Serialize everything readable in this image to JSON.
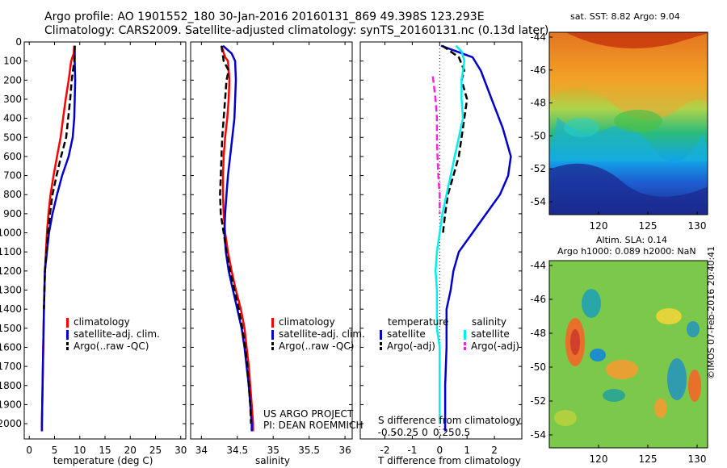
{
  "titles": {
    "line1": "Argo profile: AO 1901552_180 30-Jan-2016 20160131_869 49.398S 123.293E",
    "line2": "Climatology: CARS2009. Satellite-adjusted climatology: synTS_20160131.nc (0.13d later)"
  },
  "legends": {
    "temp": [
      "climatology",
      "satellite-adj. clim.",
      "Argo(..raw -QC)"
    ],
    "sal": [
      "climatology",
      "satellite-adj. clim.",
      "Argo(..raw -QC)"
    ],
    "diff_temp_header": "temperature",
    "diff_sal_header": "salinity",
    "diff_temp": [
      "satellite",
      "Argo(-adj)"
    ],
    "diff_sal": [
      "satellite",
      "Argo(-adj)"
    ]
  },
  "notes": {
    "project": "US ARGO PROJECT",
    "pi": "PI: DEAN ROEMMICH",
    "credit": "©IMOS 07-Feb-2016 20:40:41"
  },
  "maps": {
    "sst_title": "sat. SST: 8.82 Argo: 9.04",
    "sla_title1": "Altim. SLA: 0.14",
    "sla_title2": "Argo h1000: 0.089 h2000: NaN",
    "yticks": [
      "-44",
      "-46",
      "-48",
      "-50",
      "-52",
      "-54"
    ],
    "xticks": [
      "120",
      "125",
      "130"
    ]
  },
  "colors": {
    "climatology": "#ff0000",
    "satellite": "#0000cc",
    "argo": "#000000",
    "sat_sal": "#00eeee",
    "argo_sal": "#ff22dd"
  },
  "chart_data": [
    {
      "type": "line",
      "xlabel": "temperature (deg C)",
      "ylabel": "",
      "xlim": [
        -1,
        31
      ],
      "ylim": [
        2080,
        0
      ],
      "xticks": [
        0,
        5,
        10,
        15,
        20,
        25,
        30
      ],
      "yticks": [
        0,
        100,
        200,
        300,
        400,
        500,
        600,
        700,
        800,
        900,
        1000,
        1100,
        1200,
        1300,
        1400,
        1500,
        1600,
        1700,
        1800,
        1900,
        2000
      ],
      "series": [
        {
          "name": "climatology",
          "color": "#ff0000",
          "dash": false,
          "points": [
            [
              8.9,
              20
            ],
            [
              8.8,
              60
            ],
            [
              8.3,
              100
            ],
            [
              7.8,
              200
            ],
            [
              7.2,
              300
            ],
            [
              6.7,
              400
            ],
            [
              6.2,
              500
            ],
            [
              5.5,
              600
            ],
            [
              4.8,
              700
            ],
            [
              4.2,
              800
            ],
            [
              3.8,
              900
            ],
            [
              3.5,
              1000
            ],
            [
              3.3,
              1100
            ],
            [
              3.1,
              1200
            ],
            [
              2.9,
              1400
            ],
            [
              2.7,
              1700
            ],
            [
              2.5,
              2000
            ],
            [
              2.5,
              2040
            ]
          ]
        },
        {
          "name": "satellite-adj. clim.",
          "color": "#0000cc",
          "dash": false,
          "points": [
            [
              9.0,
              20
            ],
            [
              9.0,
              100
            ],
            [
              9.1,
              200
            ],
            [
              9.0,
              300
            ],
            [
              8.9,
              400
            ],
            [
              8.6,
              500
            ],
            [
              7.8,
              600
            ],
            [
              6.5,
              700
            ],
            [
              5.5,
              800
            ],
            [
              4.6,
              900
            ],
            [
              3.9,
              1000
            ],
            [
              3.5,
              1100
            ],
            [
              3.1,
              1200
            ],
            [
              2.9,
              1400
            ],
            [
              2.7,
              1700
            ],
            [
              2.5,
              2000
            ],
            [
              2.5,
              2040
            ]
          ]
        },
        {
          "name": "Argo(..raw -QC)",
          "color": "#000000",
          "dash": true,
          "points": [
            [
              9.0,
              20
            ],
            [
              8.9,
              100
            ],
            [
              8.4,
              200
            ],
            [
              8.1,
              300
            ],
            [
              7.7,
              400
            ],
            [
              7.3,
              500
            ],
            [
              6.3,
              600
            ],
            [
              5.4,
              700
            ],
            [
              4.6,
              800
            ],
            [
              4.1,
              900
            ],
            [
              3.7,
              1000
            ],
            [
              3.4,
              1100
            ],
            [
              3.1,
              1200
            ],
            [
              2.9,
              1400
            ]
          ]
        }
      ]
    },
    {
      "type": "line",
      "xlabel": "salinity",
      "ylabel": "",
      "xlim": [
        33.85,
        36.1
      ],
      "ylim": [
        2080,
        0
      ],
      "xticks": [
        34,
        34.5,
        35,
        35.5,
        36
      ],
      "series": [
        {
          "name": "climatology",
          "color": "#ff0000",
          "dash": false,
          "points": [
            [
              34.28,
              20
            ],
            [
              34.33,
              80
            ],
            [
              34.37,
              100
            ],
            [
              34.39,
              200
            ],
            [
              34.38,
              300
            ],
            [
              34.36,
              400
            ],
            [
              34.33,
              500
            ],
            [
              34.31,
              600
            ],
            [
              34.3,
              700
            ],
            [
              34.3,
              800
            ],
            [
              34.31,
              900
            ],
            [
              34.33,
              1000
            ],
            [
              34.37,
              1100
            ],
            [
              34.42,
              1200
            ],
            [
              34.48,
              1300
            ],
            [
              34.55,
              1400
            ],
            [
              34.6,
              1500
            ],
            [
              34.63,
              1600
            ],
            [
              34.66,
              1700
            ],
            [
              34.68,
              1800
            ],
            [
              34.7,
              1900
            ],
            [
              34.72,
              2000
            ],
            [
              34.72,
              2040
            ]
          ]
        },
        {
          "name": "satellite-adj. clim.",
          "color": "#0000cc",
          "dash": false,
          "points": [
            [
              34.3,
              20
            ],
            [
              34.42,
              60
            ],
            [
              34.47,
              100
            ],
            [
              34.48,
              200
            ],
            [
              34.47,
              300
            ],
            [
              34.46,
              400
            ],
            [
              34.43,
              500
            ],
            [
              34.4,
              600
            ],
            [
              34.37,
              700
            ],
            [
              34.35,
              800
            ],
            [
              34.33,
              900
            ],
            [
              34.32,
              1000
            ],
            [
              34.34,
              1100
            ],
            [
              34.38,
              1200
            ],
            [
              34.44,
              1300
            ],
            [
              34.5,
              1400
            ],
            [
              34.56,
              1500
            ],
            [
              34.6,
              1600
            ],
            [
              34.63,
              1700
            ],
            [
              34.66,
              1800
            ],
            [
              34.68,
              1900
            ],
            [
              34.7,
              2000
            ],
            [
              34.7,
              2040
            ]
          ]
        },
        {
          "name": "Argo(..raw -QC)",
          "color": "#000000",
          "dash": true,
          "points": [
            [
              34.28,
              20
            ],
            [
              34.31,
              100
            ],
            [
              34.38,
              150
            ],
            [
              34.35,
              200
            ],
            [
              34.33,
              300
            ],
            [
              34.31,
              400
            ],
            [
              34.29,
              500
            ],
            [
              34.28,
              600
            ],
            [
              34.27,
              700
            ],
            [
              34.26,
              800
            ],
            [
              34.27,
              900
            ],
            [
              34.31,
              1000
            ],
            [
              34.35,
              1100
            ],
            [
              34.4,
              1200
            ],
            [
              34.46,
              1300
            ],
            [
              34.52,
              1400
            ],
            [
              34.57,
              1500
            ],
            [
              34.61,
              1600
            ],
            [
              34.64,
              1700
            ],
            [
              34.66,
              1800
            ],
            [
              34.68,
              1900
            ],
            [
              34.69,
              2000
            ]
          ]
        }
      ]
    },
    {
      "type": "line",
      "xlabel": "T difference from climatology",
      "xlabel2": "S difference from climatology",
      "ylabel": "",
      "xlim": [
        -2.9,
        3.0
      ],
      "ylim": [
        2080,
        0
      ],
      "xticks": [
        -2,
        -1,
        0,
        1,
        2
      ],
      "xticks2": [
        "-0.5",
        "-0.25",
        "0",
        "0.25",
        "0.5"
      ],
      "series": [
        {
          "name": "satellite (temperature)",
          "color": "#0000cc",
          "dash": false,
          "points": [
            [
              0.05,
              20
            ],
            [
              1.2,
              80
            ],
            [
              1.5,
              150
            ],
            [
              1.9,
              300
            ],
            [
              2.3,
              450
            ],
            [
              2.5,
              550
            ],
            [
              2.6,
              600
            ],
            [
              2.5,
              700
            ],
            [
              2.2,
              800
            ],
            [
              1.7,
              900
            ],
            [
              1.2,
              1000
            ],
            [
              0.7,
              1100
            ],
            [
              0.5,
              1200
            ],
            [
              0.4,
              1300
            ],
            [
              0.25,
              1400
            ],
            [
              0.25,
              1600
            ],
            [
              0.2,
              1800
            ],
            [
              0.2,
              2000
            ],
            [
              0.2,
              2040
            ]
          ]
        },
        {
          "name": "Argo(-adj) (temperature)",
          "color": "#000000",
          "dash": true,
          "points": [
            [
              0.1,
              20
            ],
            [
              0.7,
              80
            ],
            [
              0.9,
              150
            ],
            [
              0.8,
              200
            ],
            [
              1.0,
              300
            ],
            [
              0.9,
              400
            ],
            [
              0.8,
              500
            ],
            [
              0.7,
              600
            ],
            [
              0.5,
              700
            ],
            [
              0.3,
              800
            ],
            [
              0.2,
              900
            ],
            [
              0.12,
              1000
            ]
          ]
        },
        {
          "name": "satellite (salinity)",
          "color": "#00eeee",
          "dash": false,
          "points": [
            [
              0.6,
              20
            ],
            [
              0.8,
              50
            ],
            [
              0.9,
              100
            ],
            [
              0.8,
              200
            ],
            [
              0.8,
              300
            ],
            [
              0.85,
              400
            ],
            [
              0.7,
              500
            ],
            [
              0.55,
              600
            ],
            [
              0.4,
              700
            ],
            [
              0.25,
              800
            ],
            [
              0.1,
              900
            ],
            [
              0.0,
              1000
            ],
            [
              -0.1,
              1100
            ],
            [
              -0.15,
              1200
            ],
            [
              -0.1,
              1300
            ],
            [
              -0.1,
              1400
            ],
            [
              -0.1,
              1500
            ],
            [
              0.0,
              1600
            ],
            [
              0.0,
              1800
            ],
            [
              0.0,
              1900
            ],
            [
              0.0,
              2000
            ]
          ]
        },
        {
          "name": "Argo(-adj) (salinity)",
          "color": "#ff22dd",
          "dash": true,
          "points": [
            [
              -0.25,
              180
            ],
            [
              -0.15,
              300
            ],
            [
              -0.1,
              400
            ],
            [
              -0.1,
              500
            ],
            [
              -0.08,
              600
            ],
            [
              -0.05,
              700
            ],
            [
              0.0,
              800
            ],
            [
              0.0,
              900
            ]
          ]
        }
      ]
    }
  ]
}
